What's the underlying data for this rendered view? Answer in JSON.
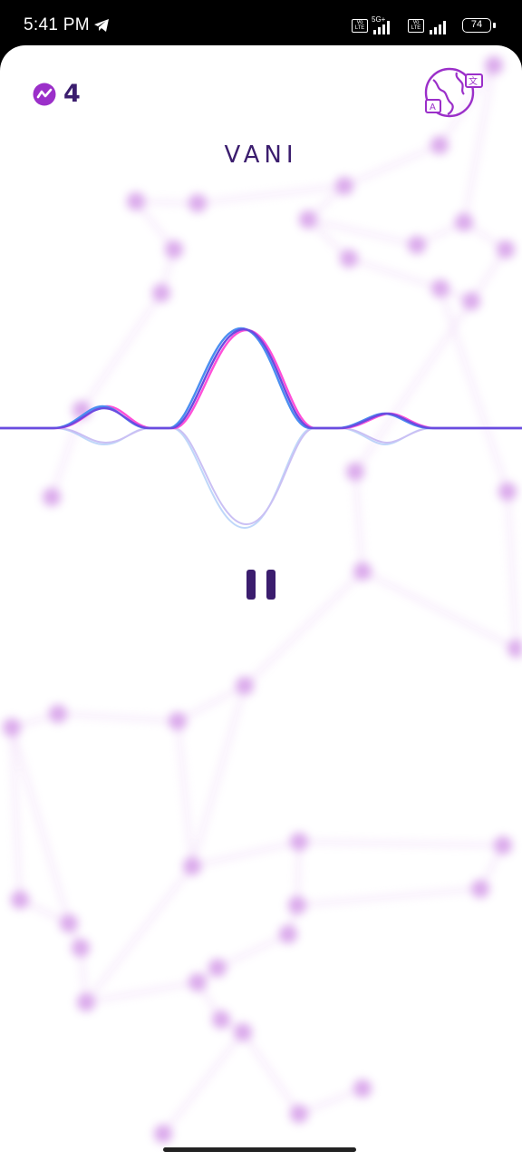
{
  "status_bar": {
    "time": "5:41 PM",
    "network_1": "Vo LTE",
    "network_type": "5G+",
    "network_2": "Vo LTE",
    "battery": "74",
    "icons": [
      "telegram-icon",
      "volte-icon",
      "signal-icon",
      "battery-icon"
    ]
  },
  "header": {
    "credits_count": "4",
    "credits_icon": "trend-icon",
    "language_icon": "globe-translate-icon"
  },
  "main": {
    "title": "VANI",
    "control_icon": "pause-icon"
  },
  "colors": {
    "primary": "#3b1d6e",
    "accent": "#9b2fc9",
    "wave_pink": "#ff4fd8",
    "wave_blue": "#4a8ef0",
    "wave_purple": "#6a4ce0"
  }
}
